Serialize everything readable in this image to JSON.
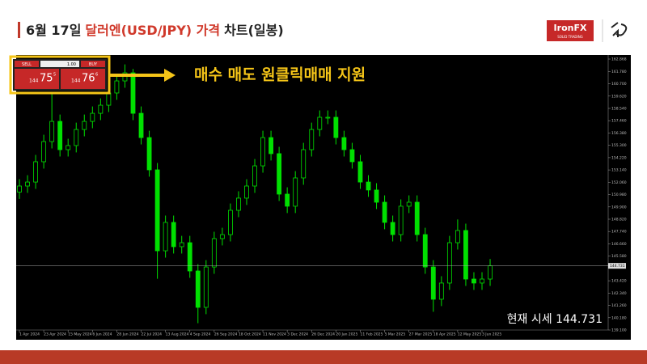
{
  "header": {
    "date": "6월 17일",
    "highlight": "달러엔(USD/JPY) 가격",
    "rest": "차트(일봉)"
  },
  "logo": {
    "brand": "IronFX",
    "tagline": "SOLID TRADING"
  },
  "widget": {
    "sell": "SELL",
    "lot": "1.00",
    "buy": "BUY",
    "sell_big": "144",
    "sell_pips": "75",
    "sell_sup": "5",
    "buy_big": "144",
    "buy_pips": "76",
    "buy_sup": "6"
  },
  "callout": "매수 매도 원클릭매매 지원",
  "annotation": "현재 시세 144.731",
  "chart_data": {
    "type": "candlestick",
    "color": "#00e000",
    "categories": [
      "1 Apr 2024",
      "23 Apr 2024",
      "15 May 2024",
      "6 Jun 2024",
      "28 Jun 2024",
      "22 Jul 2024",
      "13 Aug 2024",
      "4 Sep 2024",
      "26 Sep 2024",
      "18 Oct 2024",
      "11 Nov 2024",
      "3 Dec 2024",
      "26 Dec 2024",
      "20 Jan 2025",
      "11 Feb 2025",
      "5 Mar 2025",
      "27 Mar 2025",
      "18 Apr 2025",
      "12 May 2025",
      "3 Jun 2025"
    ],
    "ylim": [
      139.1,
      162.868
    ],
    "yticks": [
      162.868,
      {
        "value": 161.78,
        "label": "161.780"
      },
      {
        "value": 160.7,
        "label": "160.700"
      },
      {
        "value": 159.62,
        "label": "159.620"
      },
      {
        "value": 158.54,
        "label": "158.540"
      },
      {
        "value": 157.46,
        "label": "157.460"
      },
      {
        "value": 156.38,
        "label": "156.380"
      },
      {
        "value": 155.3,
        "label": "155.300"
      },
      {
        "value": 154.22,
        "label": "154.220"
      },
      {
        "value": 153.14,
        "label": "153.140"
      },
      {
        "value": 152.06,
        "label": "152.060"
      },
      {
        "value": 150.98,
        "label": "150.980"
      },
      {
        "value": 149.9,
        "label": "149.900"
      },
      {
        "value": 148.82,
        "label": "148.820"
      },
      {
        "value": 147.74,
        "label": "147.740"
      },
      {
        "value": 146.66,
        "label": "146.660"
      },
      {
        "value": 145.58,
        "label": "145.580"
      },
      {
        "value": 143.42,
        "label": "143.420"
      },
      {
        "value": 142.34,
        "label": "142.340"
      },
      {
        "value": 141.26,
        "label": "141.260"
      },
      {
        "value": 140.18,
        "label": "140.180"
      },
      {
        "value": 139.1,
        "label": "139.100"
      }
    ],
    "last_price": 144.731,
    "open": [
      151.2,
      151.73,
      152.08,
      153.86,
      155.63,
      157.4,
      154.92,
      155.28,
      156.69,
      157.4,
      158.11,
      158.82,
      159.89,
      160.95,
      161.66,
      158.11,
      155.98,
      153.15,
      146.05,
      148.54,
      146.41,
      146.76,
      144.28,
      141.09,
      144.63,
      147.12,
      147.47,
      149.6,
      150.67,
      151.73,
      153.5,
      155.98,
      154.57,
      151.02,
      149.96,
      152.44,
      154.92,
      156.69,
      157.76,
      157.76,
      155.98,
      154.92,
      153.86,
      152.08,
      151.38,
      150.31,
      148.54,
      147.47,
      149.96,
      150.31,
      147.47,
      144.63,
      141.8,
      143.22,
      146.76,
      147.83,
      143.57,
      143.22,
      143.57
    ],
    "high": [
      152.33,
      152.68,
      154.46,
      156.23,
      159.8,
      158.0,
      155.88,
      157.29,
      158.0,
      158.71,
      159.42,
      160.49,
      161.55,
      162.4,
      162.0,
      158.71,
      156.58,
      153.75,
      149.14,
      149.14,
      147.36,
      147.36,
      144.88,
      145.23,
      147.72,
      148.07,
      150.2,
      151.27,
      152.33,
      154.1,
      156.58,
      156.58,
      155.17,
      151.62,
      153.04,
      155.52,
      157.29,
      158.36,
      158.36,
      158.36,
      156.58,
      155.52,
      154.46,
      152.68,
      151.98,
      150.91,
      149.14,
      150.56,
      150.91,
      150.91,
      148.07,
      145.23,
      143.82,
      147.36,
      148.8,
      148.43,
      144.17,
      144.17,
      145.33
    ],
    "low": [
      150.6,
      151.13,
      151.48,
      153.26,
      155.03,
      154.32,
      154.32,
      154.68,
      156.09,
      156.8,
      157.51,
      158.22,
      159.29,
      160.35,
      157.51,
      155.38,
      152.55,
      143.6,
      145.45,
      145.81,
      145.81,
      143.68,
      139.7,
      140.49,
      144.03,
      146.52,
      146.87,
      149.0,
      150.07,
      151.13,
      152.9,
      153.97,
      150.42,
      149.36,
      149.36,
      151.84,
      154.32,
      156.09,
      157.16,
      155.38,
      154.32,
      153.26,
      151.48,
      150.78,
      149.71,
      147.94,
      146.87,
      146.87,
      149.36,
      146.87,
      144.03,
      140.7,
      141.2,
      142.62,
      146.16,
      142.97,
      142.62,
      142.62,
      142.97
    ],
    "close": [
      151.73,
      152.08,
      153.86,
      155.63,
      157.4,
      154.92,
      155.28,
      156.69,
      157.4,
      158.11,
      158.82,
      159.89,
      160.95,
      161.66,
      158.11,
      155.98,
      153.15,
      146.05,
      148.54,
      146.41,
      146.76,
      144.28,
      141.09,
      144.63,
      147.12,
      147.47,
      149.6,
      150.67,
      151.73,
      153.5,
      155.98,
      154.57,
      151.02,
      149.96,
      152.44,
      154.92,
      156.69,
      157.76,
      157.76,
      155.98,
      154.92,
      153.86,
      152.08,
      151.38,
      150.31,
      148.54,
      147.47,
      149.96,
      150.31,
      147.47,
      144.63,
      141.8,
      143.22,
      146.76,
      147.83,
      143.57,
      143.22,
      143.57,
      144.73
    ]
  }
}
